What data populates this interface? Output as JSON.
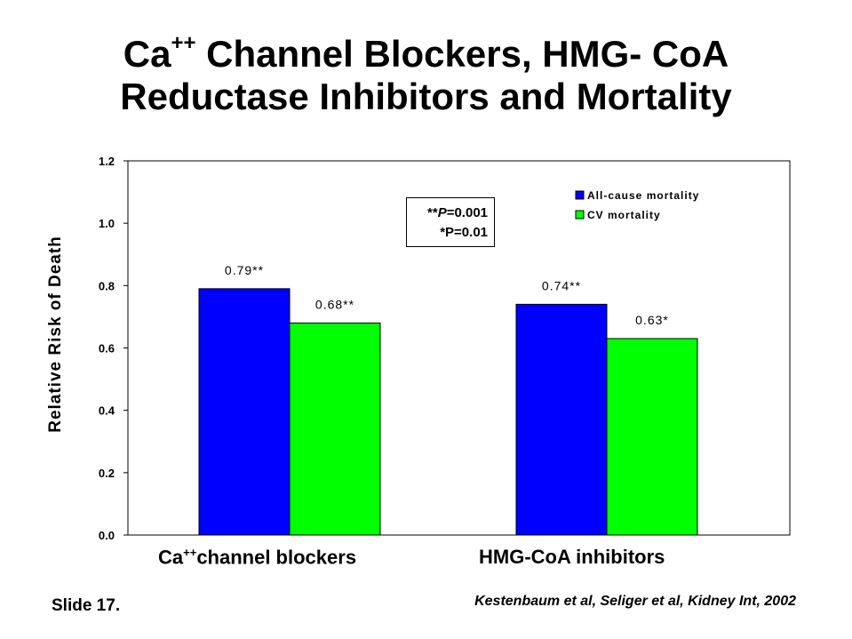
{
  "title": {
    "line1_a": "Ca",
    "line1_sup": "++",
    "line1_b": " Channel Blockers, HMG- CoA",
    "line2": "Reductase Inhibitors and Mortality"
  },
  "footer": {
    "slide": "Slide 17.",
    "citation": "Kestenbaum et al, Seliger et al, Kidney Int, 2002"
  },
  "pbox": {
    "line1_stars": "**",
    "line1_p": "P",
    "line1_value": "=0.001",
    "line2": "*P=0.01"
  },
  "category_labels": {
    "cat1_a": "Ca",
    "cat1_sup": "++",
    "cat1_b": "channel blockers",
    "cat2": "HMG-CoA inhibitors"
  },
  "colors": {
    "all_cause": "#0000ff",
    "cv": "#00ff00",
    "frame": "#000000"
  },
  "chart_data": {
    "type": "bar",
    "categories": [
      "Ca++channel blockers",
      "HMG-CoA inhibitors"
    ],
    "series": [
      {
        "name": "All-cause mortality",
        "values": [
          0.79,
          0.74
        ],
        "labels": [
          "0.79**",
          "0.74**"
        ]
      },
      {
        "name": "CV mortality",
        "values": [
          0.68,
          0.63
        ],
        "labels": [
          "0.68**",
          "0.63*"
        ]
      }
    ],
    "ylabel": "Relative Risk of Death",
    "ylim": [
      0,
      1.2
    ],
    "yticks": [
      "0.0",
      "0.2",
      "0.4",
      "0.6",
      "0.8",
      "1.0",
      "1.2"
    ],
    "legend": "top-right",
    "grid": false
  }
}
